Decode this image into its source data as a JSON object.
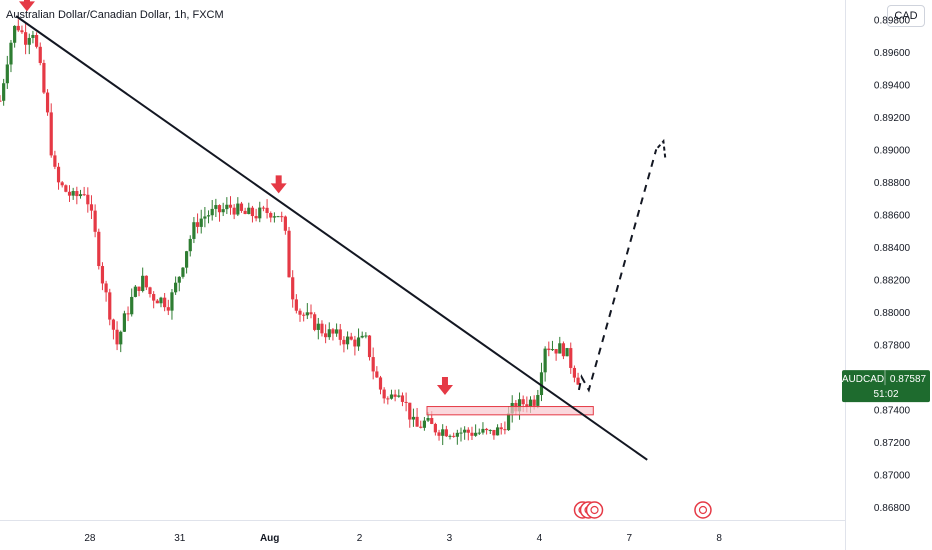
{
  "header": {
    "title": "Australian Dollar/Canadian Dollar, 1h, FXCM",
    "currency_button": "CAD"
  },
  "price_tag": {
    "symbol": "AUDCAD",
    "price": "0.87587",
    "countdown": "51:02",
    "color": "#1e6b2e"
  },
  "colors": {
    "up": "#2e7d32",
    "down": "#e53945",
    "arrow": "#e53945",
    "zone_fill": "#f8c8cf",
    "zone_stroke": "#e53945",
    "trendline": "#131722",
    "projection": "#131722"
  },
  "icons": [
    "down-arrow-icon",
    "event-flag-icon"
  ],
  "chart_data": {
    "type": "candlestick",
    "title": "Australian Dollar/Canadian Dollar, 1h, FXCM",
    "y_axis": {
      "position": "right",
      "ticks": [
        "0.89800",
        "0.89600",
        "0.89400",
        "0.89200",
        "0.89000",
        "0.88800",
        "0.88600",
        "0.88400",
        "0.88200",
        "0.88000",
        "0.87800",
        "0.87600",
        "0.87400",
        "0.87200",
        "0.87000",
        "0.86800"
      ],
      "range": [
        0.8672,
        0.8987
      ]
    },
    "x_axis": {
      "ticks": [
        {
          "label": "28",
          "bold": false
        },
        {
          "label": "31",
          "bold": false
        },
        {
          "label": "Aug",
          "bold": true
        },
        {
          "label": "2",
          "bold": false
        },
        {
          "label": "3",
          "bold": false
        },
        {
          "label": "4",
          "bold": false
        },
        {
          "label": "7",
          "bold": false
        },
        {
          "label": "8",
          "bold": false
        }
      ],
      "range": [
        0,
        9.4
      ]
    },
    "price_path": [
      [
        0.0,
        0.893
      ],
      [
        0.1,
        0.8962
      ],
      [
        0.18,
        0.8978
      ],
      [
        0.28,
        0.8968
      ],
      [
        0.36,
        0.8975
      ],
      [
        0.43,
        0.8955
      ],
      [
        0.53,
        0.892
      ],
      [
        0.58,
        0.8895
      ],
      [
        0.63,
        0.888
      ],
      [
        0.72,
        0.8875
      ],
      [
        0.82,
        0.887
      ],
      [
        0.95,
        0.8875
      ],
      [
        1.05,
        0.885
      ],
      [
        1.12,
        0.8825
      ],
      [
        1.22,
        0.88
      ],
      [
        1.3,
        0.878
      ],
      [
        1.38,
        0.8795
      ],
      [
        1.48,
        0.881
      ],
      [
        1.58,
        0.882
      ],
      [
        1.68,
        0.881
      ],
      [
        1.78,
        0.8808
      ],
      [
        1.88,
        0.8805
      ],
      [
        1.98,
        0.882
      ],
      [
        2.08,
        0.884
      ],
      [
        2.18,
        0.8855
      ],
      [
        2.3,
        0.886
      ],
      [
        2.45,
        0.8862
      ],
      [
        2.58,
        0.8865
      ],
      [
        2.7,
        0.886
      ],
      [
        2.85,
        0.886
      ],
      [
        3.0,
        0.8862
      ],
      [
        3.12,
        0.886
      ],
      [
        3.18,
        0.8845
      ],
      [
        3.23,
        0.8815
      ],
      [
        3.33,
        0.88
      ],
      [
        3.45,
        0.8795
      ],
      [
        3.6,
        0.8788
      ],
      [
        3.75,
        0.8785
      ],
      [
        3.9,
        0.8782
      ],
      [
        4.08,
        0.8782
      ],
      [
        4.15,
        0.8765
      ],
      [
        4.25,
        0.875
      ],
      [
        4.33,
        0.8745
      ],
      [
        4.42,
        0.8755
      ],
      [
        4.48,
        0.8748
      ],
      [
        4.55,
        0.8738
      ],
      [
        4.62,
        0.8728
      ],
      [
        4.72,
        0.8732
      ],
      [
        4.85,
        0.8728
      ],
      [
        5.0,
        0.8727
      ],
      [
        5.15,
        0.8726
      ],
      [
        5.3,
        0.8726
      ],
      [
        5.45,
        0.8725
      ],
      [
        5.58,
        0.8728
      ],
      [
        5.7,
        0.874
      ],
      [
        5.82,
        0.8744
      ],
      [
        5.95,
        0.8746
      ],
      [
        6.0,
        0.8756
      ],
      [
        6.05,
        0.878
      ],
      [
        6.15,
        0.8778
      ],
      [
        6.28,
        0.8777
      ],
      [
        6.38,
        0.8764
      ],
      [
        6.45,
        0.8757
      ]
    ],
    "annotations": {
      "trendline": {
        "from": [
          0.18,
          0.8982
        ],
        "to": [
          7.2,
          0.8709
        ]
      },
      "support_zone": {
        "x": [
          4.75,
          6.6
        ],
        "y": [
          0.87367,
          0.87418
        ]
      },
      "arrows": [
        {
          "x": 0.3,
          "y": 0.898
        },
        {
          "x": 3.1,
          "y": 0.8868
        },
        {
          "x": 4.95,
          "y": 0.8744
        }
      ],
      "projection": [
        [
          6.44,
          0.8752
        ],
        [
          6.47,
          0.876
        ],
        [
          6.55,
          0.8752
        ],
        [
          7.3,
          0.89
        ],
        [
          7.4,
          0.8895
        ],
        [
          7.38,
          0.8905
        ]
      ],
      "event_markers": [
        {
          "x": 6.48,
          "kind": "event-flag-icon",
          "count": 3
        },
        {
          "x": 7.82,
          "kind": "event-flag-icon",
          "count": 1
        }
      ]
    }
  }
}
